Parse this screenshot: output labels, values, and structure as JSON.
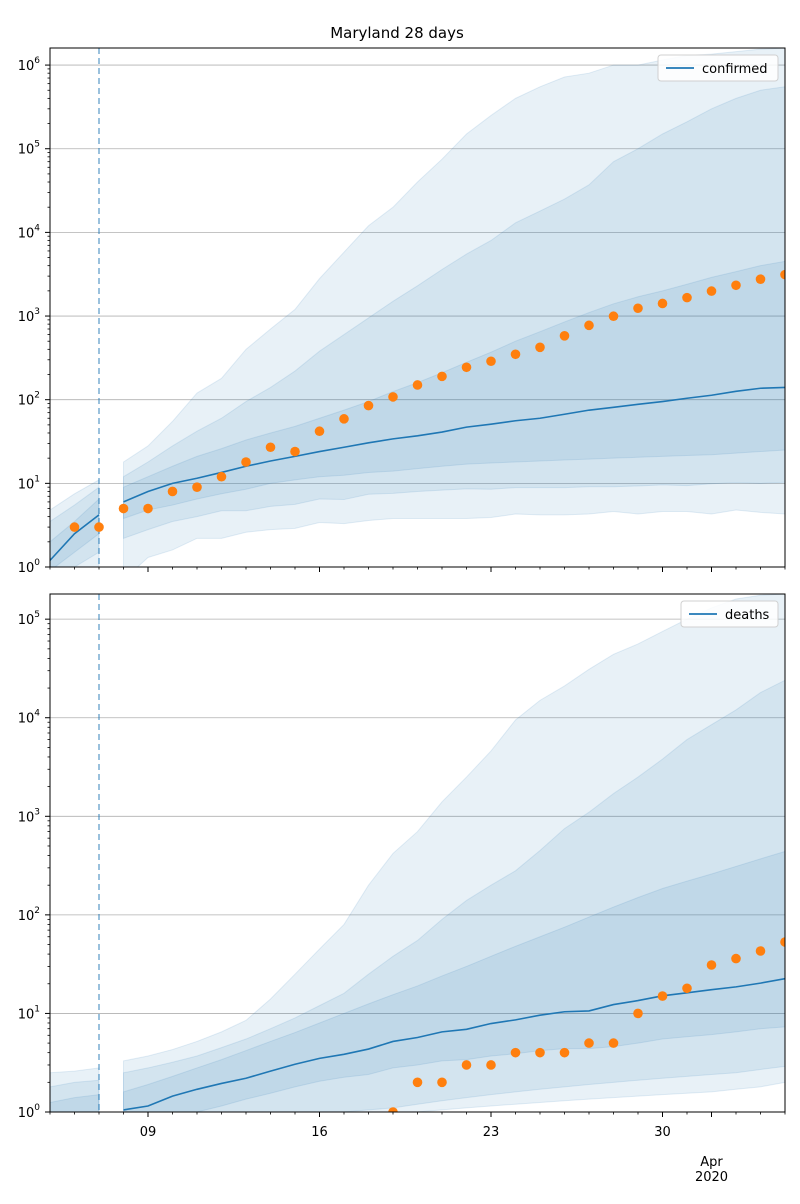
{
  "title": "Maryland 28 days",
  "colors": {
    "line": "#1f77b4",
    "observed": "#ff7f0e",
    "band": "#1f77b4",
    "grid": "#b0b0b0",
    "vline": "#1f77b4"
  },
  "x_axis": {
    "tick_labels": [
      "09",
      "16",
      "23",
      "30",
      "Apr\n2020"
    ],
    "tick_days": [
      9,
      16,
      23,
      30,
      32
    ],
    "minor_ticks": "daily",
    "range_days": [
      5,
      35
    ]
  },
  "chart_data": [
    {
      "type": "line",
      "legend_label": "confirmed",
      "legend_position": "top-right",
      "yscale": "log",
      "ylim": [
        1,
        1600000
      ],
      "ytick_values": [
        1,
        10,
        100,
        1000,
        10000,
        100000,
        1000000
      ],
      "ytick_labels": [
        [
          "10",
          "0"
        ],
        [
          "10",
          "1"
        ],
        [
          "10",
          "2"
        ],
        [
          "10",
          "3"
        ],
        [
          "10",
          "4"
        ],
        [
          "10",
          "5"
        ],
        [
          "10",
          "6"
        ]
      ],
      "grid": "horizontal",
      "vline_day": 7,
      "segments": [
        {
          "days": [
            5,
            6,
            7
          ],
          "median": [
            1.2,
            2.5,
            4.2
          ],
          "band_outer": [
            [
              0.5,
              0.7,
              0.9
            ],
            [
              4.8,
              7.5,
              11
            ]
          ],
          "band_mid": [
            [
              0.7,
              1.0,
              1.5
            ],
            [
              3.5,
              5.5,
              9
            ]
          ],
          "band_inner": [
            [
              0.9,
              1.5,
              2.5
            ],
            [
              2.0,
              3.5,
              6.5
            ]
          ]
        },
        {
          "days": [
            8,
            9,
            10,
            11,
            12,
            13,
            14,
            15,
            16,
            17,
            18,
            19,
            20,
            21,
            22,
            23,
            24,
            25,
            26,
            27,
            28,
            29,
            30,
            31,
            32,
            33,
            34,
            35
          ],
          "median": [
            6,
            8,
            10,
            11.5,
            13.5,
            16,
            18.5,
            21,
            24,
            27,
            30.5,
            34,
            37,
            41,
            47,
            51,
            56,
            60,
            67,
            75,
            81,
            88,
            95,
            104,
            113,
            126,
            137,
            140
          ],
          "band_outer": [
            [
              0.7,
              1.3,
              1.6,
              2.2,
              2.2,
              2.6,
              2.8,
              2.9,
              3.4,
              3.3,
              3.6,
              3.8,
              3.8,
              3.8,
              3.8,
              3.9,
              4.3,
              4.2,
              4.2,
              4.3,
              4.6,
              4.3,
              4.6,
              4.6,
              4.3,
              4.8,
              4.5,
              4.3
            ],
            [
              18,
              28,
              55,
              120,
              180,
              400,
              700,
              1200,
              2800,
              5800,
              12000,
              20000,
              40000,
              75000,
              150000,
              250000,
              400000,
              550000,
              720000,
              800000,
              1000000,
              1000000,
              1150000,
              1300000,
              1350000,
              1450000,
              1550000,
              1600000
            ]
          ],
          "band_mid": [
            [
              2.2,
              2.8,
              3.5,
              4,
              4.7,
              4.7,
              5.3,
              5.6,
              6.5,
              6.4,
              7.4,
              7.6,
              8,
              8.3,
              8.6,
              8.5,
              8.9,
              8.9,
              8.9,
              9.1,
              9.1,
              9.3,
              9.6,
              9.4,
              9.9,
              10.2,
              10,
              10.3
            ],
            [
              12,
              18,
              28,
              42,
              60,
              95,
              140,
              220,
              380,
              600,
              950,
              1500,
              2300,
              3600,
              5500,
              8000,
              13000,
              18000,
              25000,
              37000,
              70000,
              100000,
              150000,
              210000,
              300000,
              400000,
              500000,
              550000
            ]
          ],
          "band_inner": [
            [
              3.8,
              4.8,
              5.5,
              6.5,
              7.5,
              8.5,
              10,
              11,
              12,
              12.5,
              13.5,
              14,
              15,
              16,
              17,
              17.5,
              18,
              18.5,
              19,
              19.5,
              20,
              20.5,
              21,
              21.5,
              22,
              23,
              24,
              25
            ],
            [
              9,
              12,
              16,
              21,
              26,
              33,
              40,
              48,
              60,
              75,
              95,
              125,
              160,
              210,
              280,
              370,
              500,
              650,
              850,
              1100,
              1400,
              1700,
              2000,
              2400,
              2900,
              3400,
              4000,
              4500
            ]
          ]
        }
      ],
      "observed": {
        "days": [
          6,
          7,
          8,
          9,
          10,
          11,
          12,
          13,
          14,
          15,
          16,
          17,
          18,
          19,
          20,
          21,
          22,
          23,
          24,
          25,
          26,
          27,
          28,
          29,
          30,
          31,
          32,
          33,
          34,
          35
        ],
        "values": [
          3,
          3,
          5,
          5,
          8,
          9,
          12,
          18,
          27,
          24,
          42,
          59,
          85,
          108,
          150,
          190,
          244,
          288,
          349,
          423,
          580,
          774,
          995,
          1239,
          1413,
          1660,
          1986,
          2331,
          2758,
          3125
        ]
      }
    },
    {
      "type": "line",
      "legend_label": "deaths",
      "legend_position": "top-right",
      "yscale": "log",
      "ylim": [
        1,
        180000
      ],
      "ytick_values": [
        1,
        10,
        100,
        1000,
        10000,
        100000
      ],
      "ytick_labels": [
        [
          "10",
          "0"
        ],
        [
          "10",
          "1"
        ],
        [
          "10",
          "2"
        ],
        [
          "10",
          "3"
        ],
        [
          "10",
          "4"
        ],
        [
          "10",
          "5"
        ]
      ],
      "grid": "horizontal",
      "vline_day": 7,
      "segments": [
        {
          "days": [
            5,
            6,
            7
          ],
          "median": [
            null,
            null,
            null
          ],
          "band_outer": [
            [
              0.3,
              0.3,
              0.3
            ],
            [
              2.5,
              2.6,
              2.8
            ]
          ],
          "band_mid": [
            [
              0.4,
              0.4,
              0.4
            ],
            [
              1.8,
              2.0,
              2.1
            ]
          ],
          "band_inner": [
            [
              0.6,
              0.6,
              0.6
            ],
            [
              1.25,
              1.4,
              1.5
            ]
          ]
        },
        {
          "days": [
            8,
            9,
            10,
            11,
            12,
            13,
            14,
            15,
            16,
            17,
            18,
            19,
            20,
            21,
            22,
            23,
            24,
            25,
            26,
            27,
            28,
            29,
            30,
            31,
            32,
            33,
            34,
            35
          ],
          "median": [
            1.05,
            1.15,
            1.45,
            1.7,
            1.95,
            2.2,
            2.6,
            3.05,
            3.5,
            3.85,
            4.35,
            5.2,
            5.7,
            6.5,
            6.9,
            7.9,
            8.6,
            9.6,
            10.4,
            10.6,
            12.3,
            13.5,
            15.1,
            16.2,
            17.4,
            18.6,
            20.3,
            22.5
          ],
          "band_outer": [
            [
              0.3,
              0.35,
              0.4,
              0.45,
              0.5,
              0.55,
              0.6,
              0.65,
              0.7,
              0.8,
              0.85,
              0.9,
              1.0,
              1.05,
              1.1,
              1.15,
              1.2,
              1.25,
              1.3,
              1.35,
              1.4,
              1.45,
              1.5,
              1.55,
              1.6,
              1.7,
              1.8,
              2.0
            ],
            [
              3.3,
              3.7,
              4.3,
              5.2,
              6.5,
              8.5,
              14,
              25,
              45,
              80,
              200,
              420,
              700,
              1400,
              2500,
              4600,
              9500,
              15000,
              21000,
              31000,
              44000,
              56000,
              75000,
              100000,
              130000,
              160000,
              175000,
              180000
            ]
          ],
          "band_mid": [
            [
              0.5,
              0.55,
              0.6,
              0.65,
              0.7,
              0.75,
              0.8,
              0.85,
              0.9,
              1.0,
              1.05,
              1.1,
              1.2,
              1.3,
              1.4,
              1.5,
              1.6,
              1.7,
              1.8,
              1.9,
              2.0,
              2.1,
              2.2,
              2.3,
              2.4,
              2.5,
              2.7,
              2.9
            ],
            [
              2.5,
              2.8,
              3.2,
              3.7,
              4.5,
              5.5,
              7,
              9,
              12,
              16,
              25,
              38,
              55,
              90,
              140,
              200,
              280,
              450,
              750,
              1100,
              1700,
              2500,
              3800,
              6000,
              8500,
              12000,
              18000,
              24000
            ]
          ],
          "band_inner": [
            [
              0.75,
              0.8,
              0.9,
              1.0,
              1.15,
              1.35,
              1.55,
              1.8,
              2.05,
              2.25,
              2.4,
              2.8,
              3.0,
              3.3,
              3.4,
              3.7,
              3.9,
              4.2,
              4.4,
              4.4,
              4.6,
              5.0,
              5.5,
              5.8,
              6.1,
              6.5,
              7.0,
              7.3
            ],
            [
              1.6,
              1.9,
              2.3,
              2.8,
              3.4,
              4.2,
              5.2,
              6.4,
              8,
              10,
              12.5,
              15.5,
              19,
              24,
              30,
              38,
              48,
              60,
              75,
              95,
              120,
              150,
              185,
              220,
              260,
              310,
              370,
              440
            ]
          ]
        }
      ],
      "observed": {
        "days": [
          19,
          20,
          21,
          22,
          23,
          24,
          25,
          26,
          27,
          28,
          29,
          30,
          31,
          32,
          33,
          34,
          35
        ],
        "values": [
          1,
          2,
          2,
          3,
          3,
          4,
          4,
          4,
          5,
          5,
          10,
          15,
          18,
          31,
          36,
          43,
          53
        ]
      }
    }
  ]
}
